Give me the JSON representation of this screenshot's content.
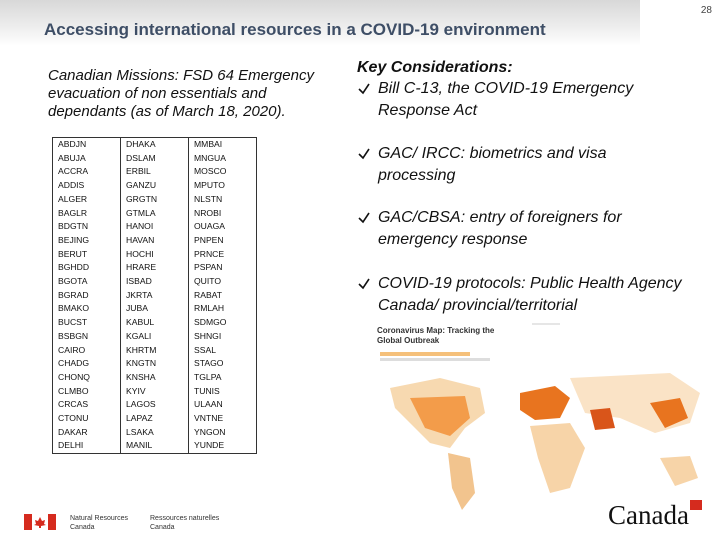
{
  "page_number": "28",
  "header": {
    "title": "Accessing international resources in a COVID-19 environment"
  },
  "left": {
    "subtitle": "Canadian Missions: FSD 64 Emergency evacuation of non essentials and dependants (as of March 18, 2020)."
  },
  "table": {
    "rows": [
      [
        "ABDJN",
        "DHAKA",
        "MMBAI"
      ],
      [
        "ABUJA",
        "DSLAM",
        "MNGUA"
      ],
      [
        "ACCRA",
        "ERBIL",
        "MOSCO"
      ],
      [
        "ADDIS",
        "GANZU",
        "MPUTO"
      ],
      [
        "ALGER",
        "GRGTN",
        "NLSTN"
      ],
      [
        "BAGLR",
        "GTMLA",
        "NROBI"
      ],
      [
        "BDGTN",
        "HANOI",
        "OUAGA"
      ],
      [
        "BEJING",
        "HAVAN",
        "PNPEN"
      ],
      [
        "BERUT",
        "HOCHI",
        "PRNCE"
      ],
      [
        "BGHDD",
        "HRARE",
        "PSPAN"
      ],
      [
        "BGOTA",
        "ISBAD",
        "QUITO"
      ],
      [
        "BGRAD",
        "JKRTA",
        "RABAT"
      ],
      [
        "BMAKO",
        "JUBA",
        "RMLAH"
      ],
      [
        "BUCST",
        "KABUL",
        "SDMGO"
      ],
      [
        "BSBGN",
        "KGALI",
        "SHNGI"
      ],
      [
        "CAIRO",
        "KHRTM",
        "SSAL"
      ],
      [
        "CHADG",
        "KNGTN",
        "STAGO"
      ],
      [
        "CHONQ",
        "KNSHA",
        "TGLPA"
      ],
      [
        "CLMBO",
        "KYIV",
        "TUNIS"
      ],
      [
        "CRCAS",
        "LAGOS",
        "ULAAN"
      ],
      [
        "CTONU",
        "LAPAZ",
        "VNTNE"
      ],
      [
        "DAKAR",
        "LSAKA",
        "YNGON"
      ],
      [
        "DELHI",
        "MANIL",
        "YUNDE"
      ]
    ]
  },
  "right": {
    "heading": "Key Considerations:",
    "bullets": [
      "Bill C-13, the COVID-19 Emergency Response Act",
      "GAC/ IRCC: biometrics and visa processing",
      "GAC/CBSA: entry of foreigners for emergency response",
      "COVID-19 protocols: Public Health Agency Canada/ provincial/territorial"
    ]
  },
  "map": {
    "title": "Coronavirus Map: Tracking the Global Outbreak"
  },
  "footer": {
    "department_en": [
      "Natural Resources",
      "Canada"
    ],
    "department_fr": [
      "Ressources naturelles",
      "Canada"
    ],
    "wordmark": "Canada"
  }
}
